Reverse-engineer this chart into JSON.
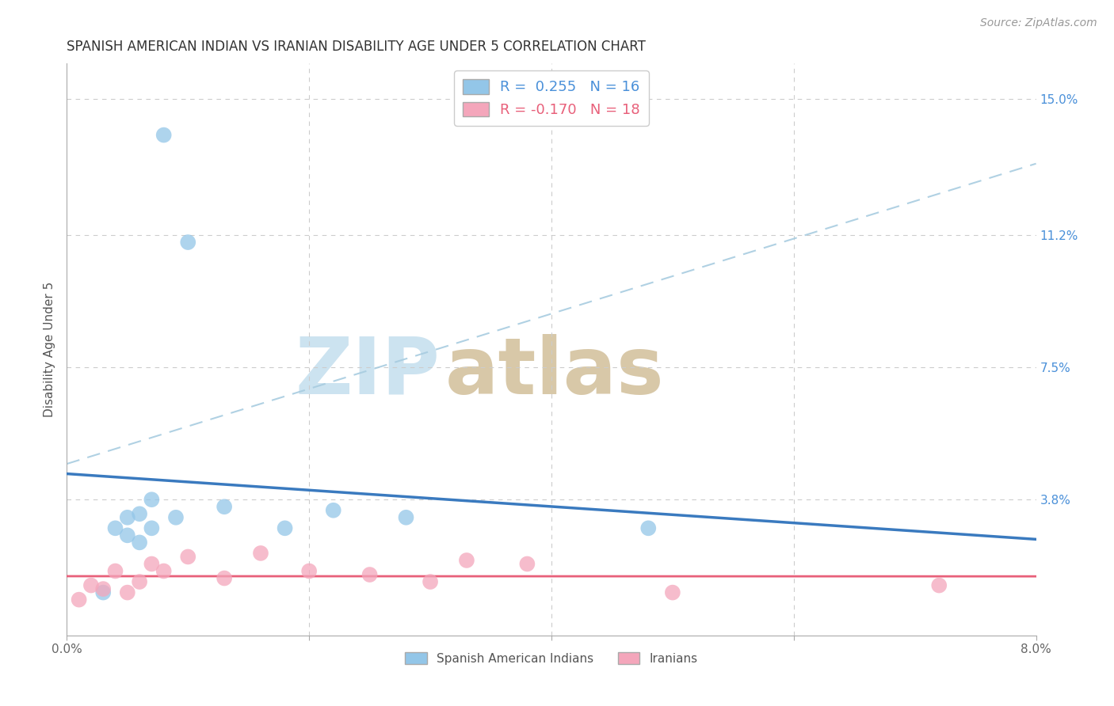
{
  "title": "SPANISH AMERICAN INDIAN VS IRANIAN DISABILITY AGE UNDER 5 CORRELATION CHART",
  "source": "Source: ZipAtlas.com",
  "ylabel": "Disability Age Under 5",
  "xlim": [
    0.0,
    0.08
  ],
  "ylim": [
    0.0,
    0.16
  ],
  "yticks": [
    0.0,
    0.038,
    0.075,
    0.112,
    0.15
  ],
  "ytick_labels": [
    "",
    "3.8%",
    "7.5%",
    "11.2%",
    "15.0%"
  ],
  "xticks": [
    0.0,
    0.02,
    0.04,
    0.06,
    0.08
  ],
  "xtick_labels": [
    "0.0%",
    "",
    "",
    "",
    "8.0%"
  ],
  "blue_scatter_x": [
    0.003,
    0.004,
    0.005,
    0.005,
    0.006,
    0.006,
    0.007,
    0.007,
    0.008,
    0.009,
    0.01,
    0.013,
    0.018,
    0.022,
    0.028,
    0.048
  ],
  "blue_scatter_y": [
    0.012,
    0.03,
    0.033,
    0.028,
    0.034,
    0.026,
    0.038,
    0.03,
    0.14,
    0.033,
    0.11,
    0.036,
    0.03,
    0.035,
    0.033,
    0.03
  ],
  "pink_scatter_x": [
    0.001,
    0.002,
    0.003,
    0.004,
    0.005,
    0.006,
    0.007,
    0.008,
    0.01,
    0.013,
    0.016,
    0.02,
    0.025,
    0.03,
    0.033,
    0.038,
    0.05,
    0.072
  ],
  "pink_scatter_y": [
    0.01,
    0.014,
    0.013,
    0.018,
    0.012,
    0.015,
    0.02,
    0.018,
    0.022,
    0.016,
    0.023,
    0.018,
    0.017,
    0.015,
    0.021,
    0.02,
    0.012,
    0.014
  ],
  "blue_R": 0.255,
  "blue_N": 16,
  "pink_R": -0.17,
  "pink_N": 18,
  "blue_scatter_color": "#93c6e8",
  "pink_scatter_color": "#f4a6bb",
  "blue_line_color": "#3a7abf",
  "pink_line_color": "#e8607a",
  "dashed_line_color": "#a8cce0",
  "background_color": "#ffffff",
  "grid_color": "#cccccc",
  "watermark_zip_color": "#cce3f0",
  "watermark_atlas_color": "#d8c8a8",
  "title_fontsize": 12,
  "label_fontsize": 11,
  "tick_fontsize": 11,
  "legend_fontsize": 13,
  "source_fontsize": 10,
  "blue_legend_color": "#4a90d9",
  "pink_legend_color": "#e8607a",
  "right_axis_color": "#4a90d9"
}
